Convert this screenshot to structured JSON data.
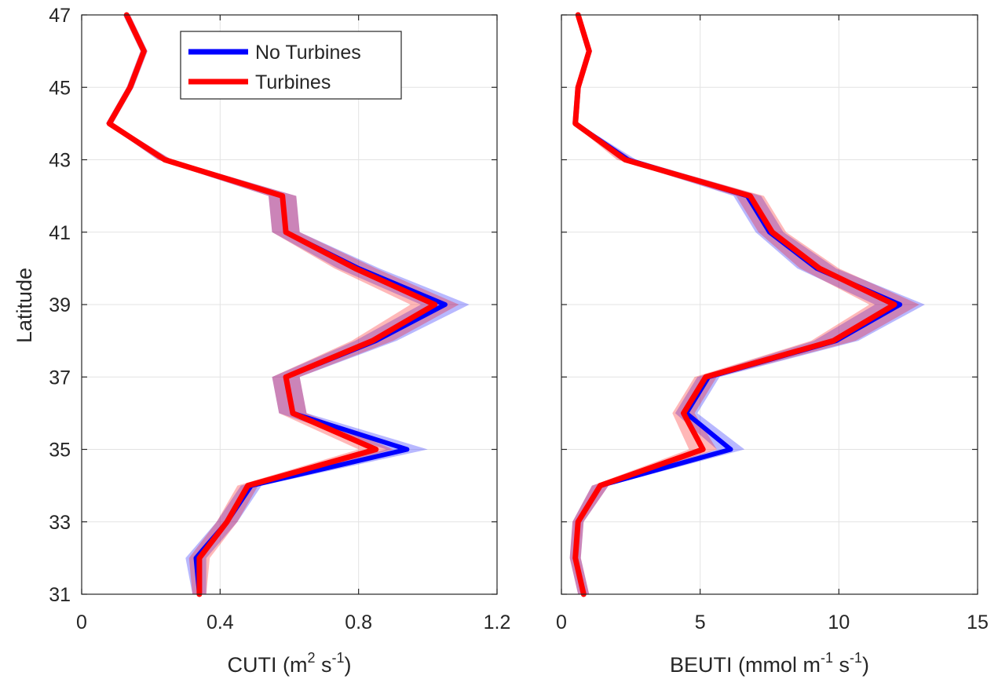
{
  "y_axis_label": "Latitude",
  "legend": {
    "entries": [
      {
        "label": "No Turbines",
        "color": "#0000ff"
      },
      {
        "label": "Turbines",
        "color": "#ff0000"
      }
    ]
  },
  "chart_data": [
    {
      "type": "line",
      "orientation": "profile (x = value, y = latitude)",
      "xlabel_parts": [
        "CUTI (m",
        "2",
        " s",
        "-1",
        ")"
      ],
      "ylabel": "Latitude",
      "xlim": [
        0,
        1.2
      ],
      "ylim": [
        31,
        47
      ],
      "xticks": [
        "0",
        "0.4",
        "0.8",
        "1.2"
      ],
      "yticks": [
        "31",
        "33",
        "35",
        "37",
        "39",
        "41",
        "43",
        "45",
        "47"
      ],
      "grid": true,
      "legend_position": "top-left",
      "latitudes": [
        31,
        32,
        33,
        34,
        35,
        36,
        37,
        38,
        39,
        40,
        41,
        42,
        43,
        44,
        45,
        46,
        47
      ],
      "series": [
        {
          "name": "No Turbines",
          "color": "#0000ff",
          "values": [
            0.34,
            0.33,
            0.42,
            0.49,
            0.94,
            0.61,
            0.59,
            0.85,
            1.05,
            0.8,
            0.59,
            0.58,
            0.24,
            0.08,
            0.14,
            0.18,
            0.13
          ],
          "band_half_width": [
            0.02,
            0.03,
            0.03,
            0.03,
            0.06,
            0.04,
            0.04,
            0.06,
            0.07,
            0.06,
            0.04,
            0.04,
            0.02,
            0.01,
            0.01,
            0.01,
            0.01
          ]
        },
        {
          "name": "Turbines",
          "color": "#ff0000",
          "values": [
            0.34,
            0.34,
            0.42,
            0.48,
            0.85,
            0.61,
            0.59,
            0.84,
            1.02,
            0.79,
            0.59,
            0.58,
            0.24,
            0.08,
            0.14,
            0.18,
            0.13
          ],
          "band_half_width": [
            0.02,
            0.03,
            0.03,
            0.03,
            0.05,
            0.04,
            0.04,
            0.06,
            0.07,
            0.06,
            0.04,
            0.04,
            0.02,
            0.01,
            0.01,
            0.01,
            0.01
          ]
        }
      ]
    },
    {
      "type": "line",
      "orientation": "profile (x = value, y = latitude)",
      "xlabel_parts": [
        "BEUTI (mmol m",
        "-1",
        " s",
        "-1",
        ")"
      ],
      "ylabel": "",
      "xlim": [
        0,
        15
      ],
      "ylim": [
        31,
        47
      ],
      "xticks": [
        "0",
        "5",
        "10",
        "15"
      ],
      "yticks": [],
      "grid": true,
      "latitudes": [
        31,
        32,
        33,
        34,
        35,
        36,
        37,
        38,
        39,
        40,
        41,
        42,
        43,
        44,
        45,
        46,
        47
      ],
      "series": [
        {
          "name": "No Turbines",
          "color": "#0000ff",
          "values": [
            0.8,
            0.5,
            0.6,
            1.4,
            6.1,
            4.5,
            5.3,
            9.9,
            12.2,
            9.2,
            7.5,
            6.7,
            2.4,
            0.5,
            0.6,
            1.0,
            0.6
          ],
          "band_half_width": [
            0.2,
            0.2,
            0.2,
            0.3,
            0.5,
            0.4,
            0.4,
            0.8,
            0.9,
            0.7,
            0.5,
            0.5,
            0.3,
            0.1,
            0.1,
            0.1,
            0.1
          ]
        },
        {
          "name": "Turbines",
          "color": "#ff0000",
          "values": [
            0.8,
            0.5,
            0.6,
            1.4,
            5.1,
            4.4,
            5.2,
            9.8,
            12.0,
            9.3,
            7.6,
            6.8,
            2.3,
            0.5,
            0.6,
            1.0,
            0.6
          ],
          "band_half_width": [
            0.2,
            0.2,
            0.2,
            0.3,
            0.5,
            0.4,
            0.4,
            0.8,
            0.9,
            0.7,
            0.5,
            0.5,
            0.3,
            0.1,
            0.1,
            0.1,
            0.1
          ]
        }
      ]
    }
  ]
}
